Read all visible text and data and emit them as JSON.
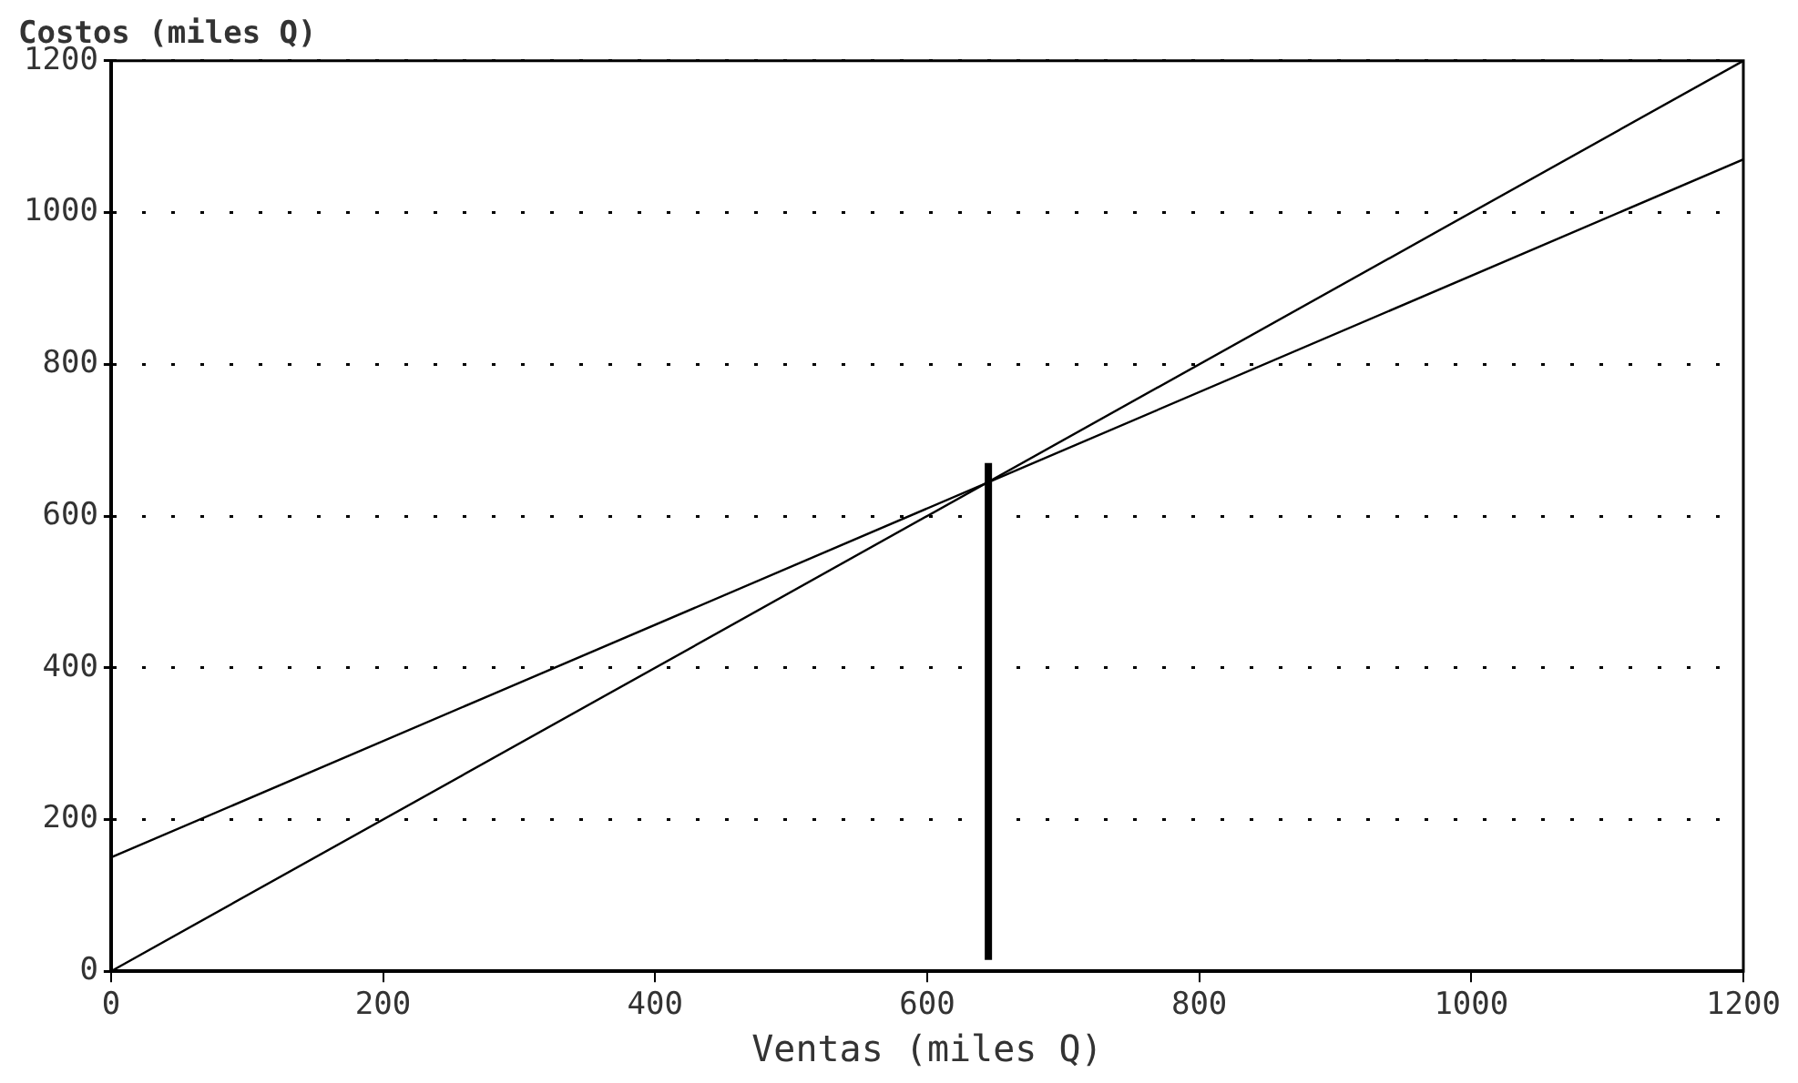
{
  "chart_data": {
    "type": "line",
    "xlabel": "Ventas (miles Q)",
    "ylabel": "Costos (miles Q)",
    "xlim": [
      0,
      1200
    ],
    "xticks": [
      0,
      200,
      400,
      600,
      800,
      1000,
      1200
    ],
    "ylim": [
      0,
      1200
    ],
    "yticks": [
      0,
      200,
      400,
      600,
      800,
      1000,
      1200
    ],
    "grid": "y",
    "legend": false,
    "marker": "none",
    "series": [
      {
        "color": "#000000",
        "x": [
          0,
          1200
        ],
        "values": [
          0,
          1200
        ]
      },
      {
        "color": "#000000",
        "x": [
          0,
          1200
        ],
        "values": [
          150,
          1070
        ]
      },
      {
        "color": "#000000",
        "x": [
          645,
          645
        ],
        "values": [
          15,
          670
        ]
      }
    ]
  }
}
